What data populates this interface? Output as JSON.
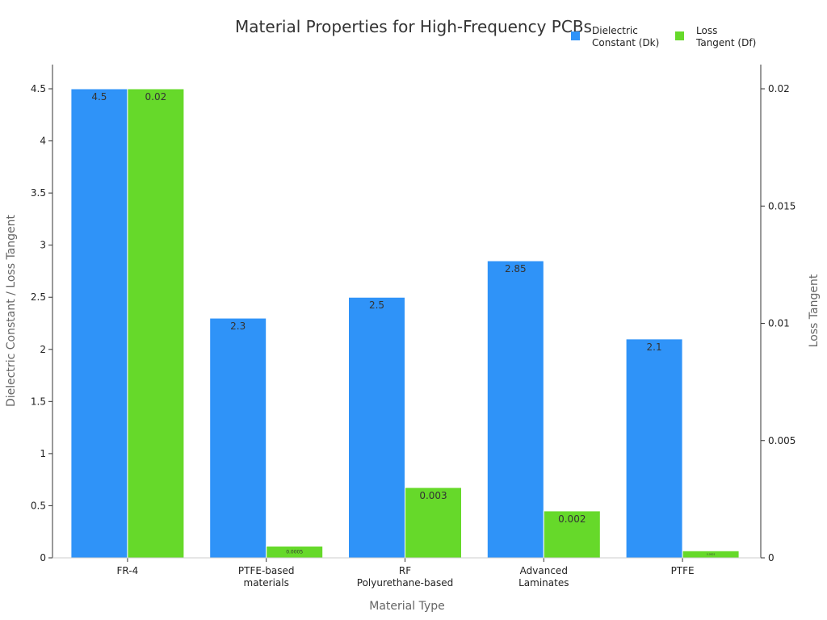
{
  "chart_data": {
    "type": "bar",
    "title": "Material Properties for High-Frequency PCBs",
    "xlabel": "Material Type",
    "ylabel": "Dielectric Constant / Loss Tangent",
    "y2label": "Loss Tangent",
    "categories": [
      [
        "FR-4"
      ],
      [
        "PTFE-based",
        "materials"
      ],
      [
        "RF",
        "Polyurethane-based"
      ],
      [
        "Advanced",
        "Laminates"
      ],
      [
        "PTFE"
      ]
    ],
    "series": [
      {
        "name": "Dielectric Constant (Dk)",
        "legend_lines": [
          "Dielectric",
          "Constant (Dk)"
        ],
        "axis": "left",
        "color": "#2f93f8",
        "values": [
          4.5,
          2.3,
          2.5,
          2.85,
          2.1
        ],
        "labels": [
          "4.5",
          "2.3",
          "2.5",
          "2.85",
          "2.1"
        ]
      },
      {
        "name": "Loss Tangent (Df)",
        "legend_lines": [
          "Loss",
          "Tangent (Df)"
        ],
        "axis": "right",
        "color": "#66d92a",
        "values": [
          0.02,
          0.0005,
          0.003,
          0.002,
          0.0003
        ],
        "labels": [
          "0.02",
          "0.0005",
          "0.003",
          "0.002",
          "0.0003"
        ]
      }
    ],
    "ylim": [
      0,
      4.5
    ],
    "yticks": [
      "0",
      "0.5",
      "1",
      "1.5",
      "2",
      "2.5",
      "3",
      "3.5",
      "4",
      "4.5"
    ],
    "y2lim": [
      0,
      0.02
    ],
    "y2ticks": [
      "0",
      "0.005",
      "0.01",
      "0.015",
      "0.02"
    ],
    "grid": false,
    "legend_placement": "top-right"
  }
}
